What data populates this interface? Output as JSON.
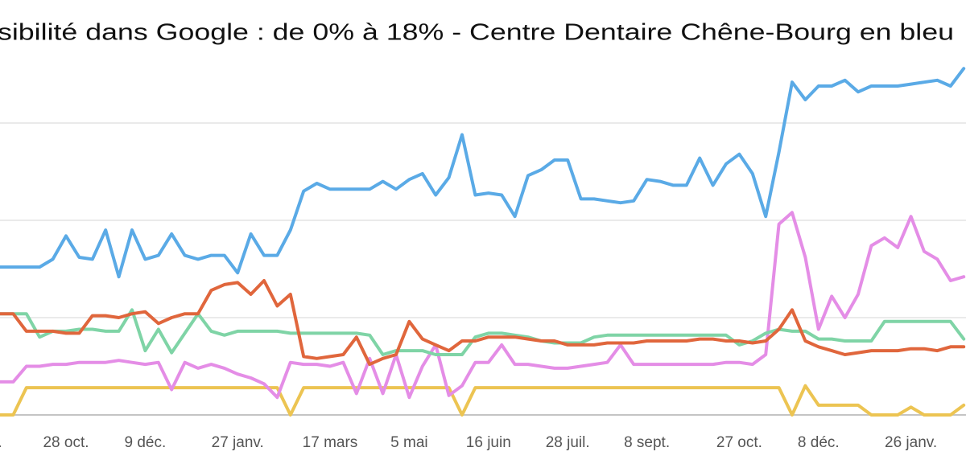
{
  "chart_data": {
    "type": "line",
    "title": "sibilité dans Google : de 0% à 18% - Centre Dentaire Chêne-Bourg en bleu",
    "categories": [
      ".",
      null,
      null,
      null,
      null,
      "28 oct.",
      null,
      null,
      null,
      null,
      null,
      "9 déc.",
      null,
      null,
      null,
      null,
      null,
      null,
      "27 janv.",
      null,
      null,
      null,
      null,
      null,
      null,
      "17 mars",
      null,
      null,
      null,
      null,
      null,
      "5 mai",
      null,
      null,
      null,
      null,
      null,
      "16 juin",
      null,
      null,
      null,
      null,
      null,
      "28 juil.",
      null,
      null,
      null,
      null,
      null,
      "8 sept.",
      null,
      null,
      null,
      null,
      null,
      null,
      "27 oct.",
      null,
      null,
      null,
      null,
      null,
      "8 déc.",
      null,
      null,
      null,
      null,
      null,
      null,
      "26 janv.",
      null,
      null,
      null,
      null
    ],
    "series": [
      {
        "color": "#ecc452",
        "values": [
          0,
          0,
          1.4,
          1.4,
          1.4,
          1.4,
          1.4,
          1.4,
          1.4,
          1.4,
          1.4,
          1.4,
          1.4,
          1.4,
          1.4,
          1.4,
          1.4,
          1.4,
          1.4,
          1.4,
          1.4,
          1.4,
          0,
          1.4,
          1.4,
          1.4,
          1.4,
          1.4,
          1.4,
          1.4,
          1.4,
          1.4,
          1.4,
          1.4,
          1.4,
          0,
          1.4,
          1.4,
          1.4,
          1.4,
          1.4,
          1.4,
          1.4,
          1.4,
          1.4,
          1.4,
          1.4,
          1.4,
          1.4,
          1.4,
          1.4,
          1.4,
          1.4,
          1.4,
          1.4,
          1.4,
          1.4,
          1.4,
          1.4,
          1.4,
          0,
          1.5,
          0.5,
          0.5,
          0.5,
          0.5,
          0,
          0,
          0,
          0.4,
          0,
          0,
          0,
          0.5
        ]
      },
      {
        "color": "#e48de6",
        "values": [
          1.7,
          1.7,
          2.5,
          2.5,
          2.6,
          2.6,
          2.7,
          2.7,
          2.7,
          2.8,
          2.7,
          2.6,
          2.7,
          1.3,
          2.7,
          2.4,
          2.6,
          2.4,
          2.1,
          1.9,
          1.6,
          0.9,
          2.7,
          2.6,
          2.6,
          2.5,
          2.7,
          1.1,
          2.9,
          1.1,
          3.1,
          0.9,
          2.5,
          3.6,
          1.0,
          1.5,
          2.7,
          2.7,
          3.6,
          2.6,
          2.6,
          2.5,
          2.4,
          2.4,
          2.5,
          2.6,
          2.7,
          3.6,
          2.6,
          2.6,
          2.6,
          2.6,
          2.6,
          2.6,
          2.6,
          2.7,
          2.7,
          2.6,
          3.1,
          9.8,
          10.4,
          8.1,
          4.4,
          6.1,
          5.0,
          6.2,
          8.7,
          9.1,
          8.6,
          10.2,
          8.4,
          8.0,
          6.9,
          7.1
        ]
      },
      {
        "color": "#7fd4a6",
        "values": [
          5.2,
          5.2,
          5.2,
          4.0,
          4.3,
          4.3,
          4.4,
          4.4,
          4.3,
          4.3,
          5.4,
          3.3,
          4.4,
          3.2,
          4.2,
          5.2,
          4.3,
          4.1,
          4.3,
          4.3,
          4.3,
          4.3,
          4.2,
          4.2,
          4.2,
          4.2,
          4.2,
          4.2,
          4.1,
          3.1,
          3.3,
          3.3,
          3.3,
          3.1,
          3.1,
          3.1,
          4.0,
          4.2,
          4.2,
          4.1,
          4.0,
          3.8,
          3.7,
          3.7,
          3.7,
          4.0,
          4.1,
          4.1,
          4.1,
          4.1,
          4.1,
          4.1,
          4.1,
          4.1,
          4.1,
          4.1,
          3.6,
          3.8,
          4.2,
          4.4,
          4.3,
          4.3,
          3.9,
          3.9,
          3.8,
          3.8,
          3.8,
          4.8,
          4.8,
          4.8,
          4.8,
          4.8,
          4.8,
          3.9
        ]
      },
      {
        "color": "#e0663c",
        "values": [
          5.2,
          5.2,
          4.3,
          4.3,
          4.3,
          4.2,
          4.2,
          5.1,
          5.1,
          5.0,
          5.2,
          5.3,
          4.7,
          5.0,
          5.2,
          5.2,
          6.4,
          6.7,
          6.8,
          6.2,
          6.9,
          5.6,
          6.2,
          3.0,
          2.9,
          3.0,
          3.1,
          4.0,
          2.6,
          2.9,
          3.1,
          4.8,
          3.9,
          3.6,
          3.3,
          3.8,
          3.8,
          4.0,
          4.0,
          4.0,
          3.9,
          3.8,
          3.8,
          3.6,
          3.6,
          3.6,
          3.7,
          3.7,
          3.7,
          3.8,
          3.8,
          3.8,
          3.8,
          3.9,
          3.9,
          3.8,
          3.8,
          3.7,
          3.8,
          4.4,
          5.4,
          3.8,
          3.5,
          3.3,
          3.1,
          3.2,
          3.3,
          3.3,
          3.3,
          3.4,
          3.4,
          3.3,
          3.5,
          3.5
        ]
      },
      {
        "color": "#5aaae6",
        "values": [
          7.6,
          7.6,
          7.6,
          7.6,
          8.0,
          9.2,
          8.1,
          8.0,
          9.5,
          7.1,
          9.5,
          8.0,
          8.2,
          9.3,
          8.2,
          8.0,
          8.2,
          8.2,
          7.3,
          9.3,
          8.2,
          8.2,
          9.5,
          11.5,
          11.9,
          11.6,
          11.6,
          11.6,
          11.6,
          12.0,
          11.6,
          12.1,
          12.4,
          11.3,
          12.2,
          14.4,
          11.3,
          11.4,
          11.3,
          10.2,
          12.3,
          12.6,
          13.1,
          13.1,
          11.1,
          11.1,
          11.0,
          10.9,
          11.0,
          12.1,
          12.0,
          11.8,
          11.8,
          13.2,
          11.8,
          12.9,
          13.4,
          12.4,
          10.2,
          13.5,
          17.1,
          16.2,
          16.9,
          16.9,
          17.2,
          16.6,
          16.9,
          16.9,
          16.9,
          17.0,
          17.1,
          17.2,
          16.9,
          17.8
        ]
      }
    ],
    "ylim": [
      0,
      20
    ],
    "yticks": [
      0,
      5,
      10,
      15
    ],
    "grid": true
  }
}
